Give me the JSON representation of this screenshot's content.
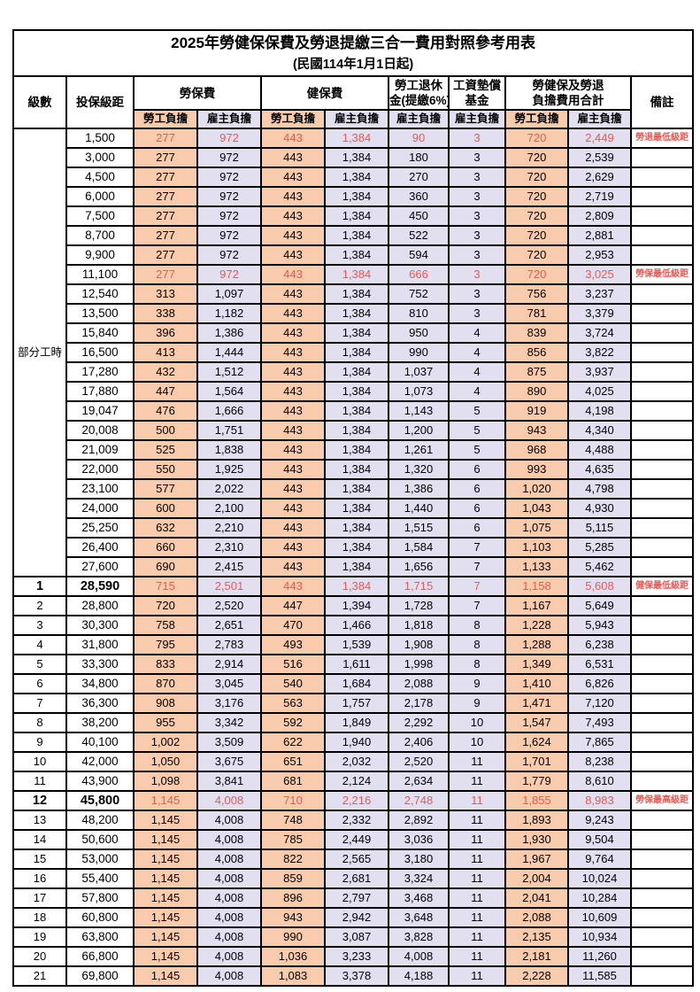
{
  "title": "2025年勞健保保費及勞退提繳三合一費用對照參考用表",
  "subtitle": "(民國114年1月1日起)",
  "header": {
    "level": "級數",
    "bracket": "投保級距",
    "labor_fee": "勞保費",
    "health_fee": "健保費",
    "pension_line1": "勞工退休",
    "pension_line2": "金(提繳6%)",
    "wage_fund_line1": "工資墊償",
    "wage_fund_line2": "基金",
    "total_line1": "勞健保及勞退",
    "total_line2": "負擔費用合計",
    "note": "備註",
    "employee": "勞工負擔",
    "employer": "雇主負擔"
  },
  "part_time_label": "部分工時",
  "part_time_row_count": 23,
  "colors": {
    "employee_bg": "#F8CBAD",
    "employer_bg": "#E2DFF1",
    "highlight_text": "#EE5750"
  },
  "rows": [
    {
      "level": "",
      "bracket": "1,500",
      "fees": [
        "277",
        "972",
        "443",
        "1,384",
        "90",
        "3",
        "720",
        "2,449"
      ],
      "note": "勞退最低級距",
      "highlight": true,
      "bold": false
    },
    {
      "level": "",
      "bracket": "3,000",
      "fees": [
        "277",
        "972",
        "443",
        "1,384",
        "180",
        "3",
        "720",
        "2,539"
      ],
      "note": "",
      "highlight": false,
      "bold": false
    },
    {
      "level": "",
      "bracket": "4,500",
      "fees": [
        "277",
        "972",
        "443",
        "1,384",
        "270",
        "3",
        "720",
        "2,629"
      ],
      "note": "",
      "highlight": false,
      "bold": false
    },
    {
      "level": "",
      "bracket": "6,000",
      "fees": [
        "277",
        "972",
        "443",
        "1,384",
        "360",
        "3",
        "720",
        "2,719"
      ],
      "note": "",
      "highlight": false,
      "bold": false
    },
    {
      "level": "",
      "bracket": "7,500",
      "fees": [
        "277",
        "972",
        "443",
        "1,384",
        "450",
        "3",
        "720",
        "2,809"
      ],
      "note": "",
      "highlight": false,
      "bold": false
    },
    {
      "level": "",
      "bracket": "8,700",
      "fees": [
        "277",
        "972",
        "443",
        "1,384",
        "522",
        "3",
        "720",
        "2,881"
      ],
      "note": "",
      "highlight": false,
      "bold": false
    },
    {
      "level": "",
      "bracket": "9,900",
      "fees": [
        "277",
        "972",
        "443",
        "1,384",
        "594",
        "3",
        "720",
        "2,953"
      ],
      "note": "",
      "highlight": false,
      "bold": false
    },
    {
      "level": "",
      "bracket": "11,100",
      "fees": [
        "277",
        "972",
        "443",
        "1,384",
        "666",
        "3",
        "720",
        "3,025"
      ],
      "note": "勞保最低級距",
      "highlight": true,
      "bold": false
    },
    {
      "level": "",
      "bracket": "12,540",
      "fees": [
        "313",
        "1,097",
        "443",
        "1,384",
        "752",
        "3",
        "756",
        "3,237"
      ],
      "note": "",
      "highlight": false,
      "bold": false
    },
    {
      "level": "",
      "bracket": "13,500",
      "fees": [
        "338",
        "1,182",
        "443",
        "1,384",
        "810",
        "3",
        "781",
        "3,379"
      ],
      "note": "",
      "highlight": false,
      "bold": false
    },
    {
      "level": "",
      "bracket": "15,840",
      "fees": [
        "396",
        "1,386",
        "443",
        "1,384",
        "950",
        "4",
        "839",
        "3,724"
      ],
      "note": "",
      "highlight": false,
      "bold": false
    },
    {
      "level": "",
      "bracket": "16,500",
      "fees": [
        "413",
        "1,444",
        "443",
        "1,384",
        "990",
        "4",
        "856",
        "3,822"
      ],
      "note": "",
      "highlight": false,
      "bold": false
    },
    {
      "level": "",
      "bracket": "17,280",
      "fees": [
        "432",
        "1,512",
        "443",
        "1,384",
        "1,037",
        "4",
        "875",
        "3,937"
      ],
      "note": "",
      "highlight": false,
      "bold": false
    },
    {
      "level": "",
      "bracket": "17,880",
      "fees": [
        "447",
        "1,564",
        "443",
        "1,384",
        "1,073",
        "4",
        "890",
        "4,025"
      ],
      "note": "",
      "highlight": false,
      "bold": false
    },
    {
      "level": "",
      "bracket": "19,047",
      "fees": [
        "476",
        "1,666",
        "443",
        "1,384",
        "1,143",
        "5",
        "919",
        "4,198"
      ],
      "note": "",
      "highlight": false,
      "bold": false
    },
    {
      "level": "",
      "bracket": "20,008",
      "fees": [
        "500",
        "1,751",
        "443",
        "1,384",
        "1,200",
        "5",
        "943",
        "4,340"
      ],
      "note": "",
      "highlight": false,
      "bold": false
    },
    {
      "level": "",
      "bracket": "21,009",
      "fees": [
        "525",
        "1,838",
        "443",
        "1,384",
        "1,261",
        "5",
        "968",
        "4,488"
      ],
      "note": "",
      "highlight": false,
      "bold": false
    },
    {
      "level": "",
      "bracket": "22,000",
      "fees": [
        "550",
        "1,925",
        "443",
        "1,384",
        "1,320",
        "6",
        "993",
        "4,635"
      ],
      "note": "",
      "highlight": false,
      "bold": false
    },
    {
      "level": "",
      "bracket": "23,100",
      "fees": [
        "577",
        "2,022",
        "443",
        "1,384",
        "1,386",
        "6",
        "1,020",
        "4,798"
      ],
      "note": "",
      "highlight": false,
      "bold": false
    },
    {
      "level": "",
      "bracket": "24,000",
      "fees": [
        "600",
        "2,100",
        "443",
        "1,384",
        "1,440",
        "6",
        "1,043",
        "4,930"
      ],
      "note": "",
      "highlight": false,
      "bold": false
    },
    {
      "level": "",
      "bracket": "25,250",
      "fees": [
        "632",
        "2,210",
        "443",
        "1,384",
        "1,515",
        "6",
        "1,075",
        "5,115"
      ],
      "note": "",
      "highlight": false,
      "bold": false
    },
    {
      "level": "",
      "bracket": "26,400",
      "fees": [
        "660",
        "2,310",
        "443",
        "1,384",
        "1,584",
        "7",
        "1,103",
        "5,285"
      ],
      "note": "",
      "highlight": false,
      "bold": false
    },
    {
      "level": "",
      "bracket": "27,600",
      "fees": [
        "690",
        "2,415",
        "443",
        "1,384",
        "1,656",
        "7",
        "1,133",
        "5,462"
      ],
      "note": "",
      "highlight": false,
      "bold": false
    },
    {
      "level": "1",
      "bracket": "28,590",
      "fees": [
        "715",
        "2,501",
        "443",
        "1,384",
        "1,715",
        "7",
        "1,158",
        "5,608"
      ],
      "note": "健保最低級距",
      "highlight": true,
      "bold": true
    },
    {
      "level": "2",
      "bracket": "28,800",
      "fees": [
        "720",
        "2,520",
        "447",
        "1,394",
        "1,728",
        "7",
        "1,167",
        "5,649"
      ],
      "note": "",
      "highlight": false,
      "bold": false
    },
    {
      "level": "3",
      "bracket": "30,300",
      "fees": [
        "758",
        "2,651",
        "470",
        "1,466",
        "1,818",
        "8",
        "1,228",
        "5,943"
      ],
      "note": "",
      "highlight": false,
      "bold": false
    },
    {
      "level": "4",
      "bracket": "31,800",
      "fees": [
        "795",
        "2,783",
        "493",
        "1,539",
        "1,908",
        "8",
        "1,288",
        "6,238"
      ],
      "note": "",
      "highlight": false,
      "bold": false
    },
    {
      "level": "5",
      "bracket": "33,300",
      "fees": [
        "833",
        "2,914",
        "516",
        "1,611",
        "1,998",
        "8",
        "1,349",
        "6,531"
      ],
      "note": "",
      "highlight": false,
      "bold": false
    },
    {
      "level": "6",
      "bracket": "34,800",
      "fees": [
        "870",
        "3,045",
        "540",
        "1,684",
        "2,088",
        "9",
        "1,410",
        "6,826"
      ],
      "note": "",
      "highlight": false,
      "bold": false
    },
    {
      "level": "7",
      "bracket": "36,300",
      "fees": [
        "908",
        "3,176",
        "563",
        "1,757",
        "2,178",
        "9",
        "1,471",
        "7,120"
      ],
      "note": "",
      "highlight": false,
      "bold": false
    },
    {
      "level": "8",
      "bracket": "38,200",
      "fees": [
        "955",
        "3,342",
        "592",
        "1,849",
        "2,292",
        "10",
        "1,547",
        "7,493"
      ],
      "note": "",
      "highlight": false,
      "bold": false
    },
    {
      "level": "9",
      "bracket": "40,100",
      "fees": [
        "1,002",
        "3,509",
        "622",
        "1,940",
        "2,406",
        "10",
        "1,624",
        "7,865"
      ],
      "note": "",
      "highlight": false,
      "bold": false
    },
    {
      "level": "10",
      "bracket": "42,000",
      "fees": [
        "1,050",
        "3,675",
        "651",
        "2,032",
        "2,520",
        "11",
        "1,701",
        "8,238"
      ],
      "note": "",
      "highlight": false,
      "bold": false
    },
    {
      "level": "11",
      "bracket": "43,900",
      "fees": [
        "1,098",
        "3,841",
        "681",
        "2,124",
        "2,634",
        "11",
        "1,779",
        "8,610"
      ],
      "note": "",
      "highlight": false,
      "bold": false
    },
    {
      "level": "12",
      "bracket": "45,800",
      "fees": [
        "1,145",
        "4,008",
        "710",
        "2,216",
        "2,748",
        "11",
        "1,855",
        "8,983"
      ],
      "note": "勞保最高級距",
      "highlight": true,
      "bold": true
    },
    {
      "level": "13",
      "bracket": "48,200",
      "fees": [
        "1,145",
        "4,008",
        "748",
        "2,332",
        "2,892",
        "11",
        "1,893",
        "9,243"
      ],
      "note": "",
      "highlight": false,
      "bold": false
    },
    {
      "level": "14",
      "bracket": "50,600",
      "fees": [
        "1,145",
        "4,008",
        "785",
        "2,449",
        "3,036",
        "11",
        "1,930",
        "9,504"
      ],
      "note": "",
      "highlight": false,
      "bold": false
    },
    {
      "level": "15",
      "bracket": "53,000",
      "fees": [
        "1,145",
        "4,008",
        "822",
        "2,565",
        "3,180",
        "11",
        "1,967",
        "9,764"
      ],
      "note": "",
      "highlight": false,
      "bold": false
    },
    {
      "level": "16",
      "bracket": "55,400",
      "fees": [
        "1,145",
        "4,008",
        "859",
        "2,681",
        "3,324",
        "11",
        "2,004",
        "10,024"
      ],
      "note": "",
      "highlight": false,
      "bold": false
    },
    {
      "level": "17",
      "bracket": "57,800",
      "fees": [
        "1,145",
        "4,008",
        "896",
        "2,797",
        "3,468",
        "11",
        "2,041",
        "10,284"
      ],
      "note": "",
      "highlight": false,
      "bold": false
    },
    {
      "level": "18",
      "bracket": "60,800",
      "fees": [
        "1,145",
        "4,008",
        "943",
        "2,942",
        "3,648",
        "11",
        "2,088",
        "10,609"
      ],
      "note": "",
      "highlight": false,
      "bold": false
    },
    {
      "level": "19",
      "bracket": "63,800",
      "fees": [
        "1,145",
        "4,008",
        "990",
        "3,087",
        "3,828",
        "11",
        "2,135",
        "10,934"
      ],
      "note": "",
      "highlight": false,
      "bold": false
    },
    {
      "level": "20",
      "bracket": "66,800",
      "fees": [
        "1,145",
        "4,008",
        "1,036",
        "3,233",
        "4,008",
        "11",
        "2,181",
        "11,260"
      ],
      "note": "",
      "highlight": false,
      "bold": false
    },
    {
      "level": "21",
      "bracket": "69,800",
      "fees": [
        "1,145",
        "4,008",
        "1,083",
        "3,378",
        "4,188",
        "11",
        "2,228",
        "11,585"
      ],
      "note": "",
      "highlight": false,
      "bold": false
    }
  ]
}
